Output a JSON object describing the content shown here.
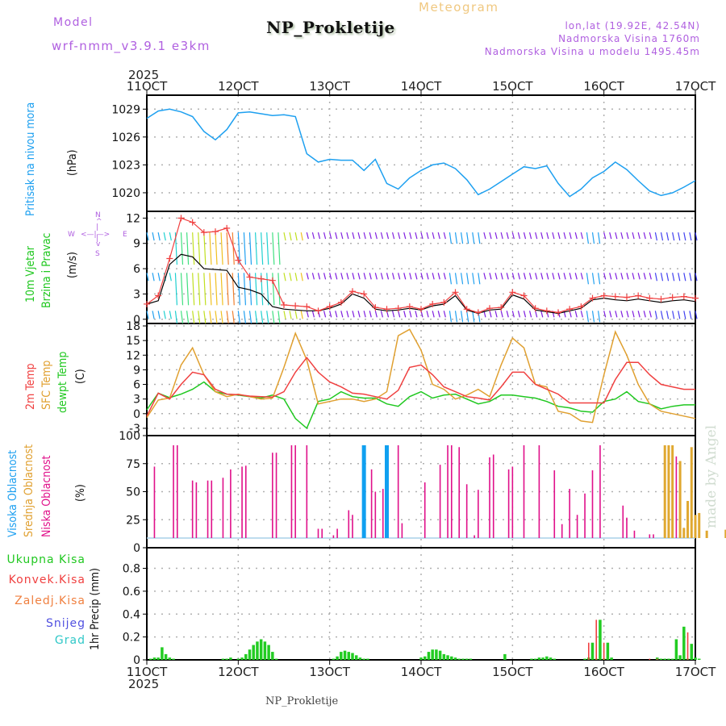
{
  "header": {
    "model_label": "Model",
    "model_name": "wrf-nmm_v3.9.1 e3km",
    "station_title": "NP_Prokletije",
    "product": "Meteogram",
    "coords": "lon,lat (19.92E, 42.54N)",
    "elevation": "Nadmorska Visina 1760m",
    "model_elevation": "Nadmorska Visina u modelu 1495.45m",
    "year_top": "2025",
    "year_bottom": "2025",
    "footer_station": "NP_Prokletije",
    "watermark": "made by Angel"
  },
  "colors": {
    "pressure": "#1ea0f0",
    "temp2m": "#f04040",
    "sfc_temp": "#e0a030",
    "dewpt": "#20c820",
    "cloud_high": "#10a0f0",
    "cloud_mid": "#e0a830",
    "cloud_low": "#e0108a",
    "precip_total": "#22cc22",
    "precip_conv": "#f04040",
    "wind_gust": "#f04040",
    "wind_speed": "#000000",
    "label_purple": "#b060e0"
  },
  "panel_labels": {
    "pressure": {
      "name": "Pritisak na nivou mora",
      "unit": "(hPa)"
    },
    "wind": {
      "name1": "10m Vjetar",
      "name2": "Brzina i Pravac",
      "unit": "(m/s)",
      "compass": {
        "n": "N",
        "s": "S",
        "w": "W",
        "e": "E"
      }
    },
    "temp": {
      "t2m": "2m Temp",
      "sfc": "SFC Temp",
      "dew": "dewpt Temp",
      "unit": "(C)"
    },
    "cloud": {
      "high": "Visoka Oblacnost",
      "mid": "Srednja Oblacnost",
      "low": "Niska Oblacnost",
      "unit": "(%)"
    },
    "precip": {
      "total": "Ukupna Kisa",
      "conv": "Konvek.Kisa",
      "frz": "Zaledj.Kisa",
      "snow": "Snijeg",
      "hail": "Grad",
      "unit": "1hr Precip (mm)"
    }
  },
  "chart_data": [
    {
      "type": "line",
      "title": "Pritisak na nivou mora",
      "ylabel": "(hPa)",
      "x_ticks": [
        "11OCT",
        "12OCT",
        "13OCT",
        "14OCT",
        "15OCT",
        "16OCT",
        "17OCT"
      ],
      "x_range_days": [
        0,
        6
      ],
      "ylim": [
        1018,
        1030.5
      ],
      "y_ticks": [
        1020,
        1023,
        1026,
        1029
      ],
      "grid": true,
      "series": [
        {
          "name": "MSLP",
          "x_hours": [
            0,
            3,
            6,
            9,
            12,
            15,
            18,
            21,
            24,
            27,
            30,
            33,
            36,
            39,
            42,
            45,
            48,
            51,
            54,
            57,
            60,
            63,
            66,
            69,
            72,
            75,
            78,
            81,
            84,
            87,
            90,
            93,
            96,
            99,
            102,
            105,
            108,
            111,
            114,
            117,
            120,
            123,
            126,
            129,
            132,
            135,
            138,
            141,
            144
          ],
          "values": [
            1028,
            1028.8,
            1029,
            1028.7,
            1028.2,
            1026.6,
            1025.7,
            1026.8,
            1028.6,
            1028.7,
            1028.5,
            1028.3,
            1028.4,
            1028.2,
            1024.2,
            1023.3,
            1023.6,
            1023.5,
            1023.5,
            1022.4,
            1023.6,
            1021.0,
            1020.4,
            1021.6,
            1022.4,
            1023.0,
            1023.2,
            1022.6,
            1021.4,
            1019.8,
            1020.4,
            1021.2,
            1022.0,
            1022.8,
            1022.6,
            1022.9,
            1021.0,
            1019.6,
            1020.4,
            1021.6,
            1022.3,
            1023.3,
            1022.5,
            1021.3,
            1020.2,
            1019.7,
            1020.0,
            1020.6,
            1021.3
          ]
        }
      ]
    },
    {
      "type": "line",
      "title": "10m Vjetar Brzina i Pravac",
      "ylabel": "(m/s)",
      "ylim": [
        -0.5,
        12.8
      ],
      "y_ticks": [
        0,
        3,
        6,
        9,
        12
      ],
      "grid": true,
      "series": [
        {
          "name": "gust",
          "x_hours": [
            0,
            3,
            6,
            9,
            12,
            15,
            18,
            21,
            24,
            27,
            30,
            33,
            36,
            39,
            42,
            45,
            48,
            51,
            54,
            57,
            60,
            63,
            66,
            69,
            72,
            75,
            78,
            81,
            84,
            87,
            90,
            93,
            96,
            99,
            102,
            105,
            108,
            111,
            114,
            117,
            120,
            123,
            126,
            129,
            132,
            135,
            138,
            141,
            144
          ],
          "values": [
            1.8,
            2.8,
            7.2,
            12.0,
            11.5,
            10.3,
            10.4,
            10.8,
            7.0,
            5.0,
            4.8,
            4.6,
            1.7,
            1.6,
            1.5,
            1.0,
            1.5,
            2.0,
            3.3,
            3.0,
            1.4,
            1.2,
            1.3,
            1.5,
            1.2,
            1.8,
            2.0,
            3.2,
            1.2,
            0.8,
            1.3,
            1.4,
            3.2,
            2.8,
            1.3,
            1.0,
            0.8,
            1.2,
            1.5,
            2.5,
            2.8,
            2.7,
            2.6,
            2.8,
            2.5,
            2.4,
            2.6,
            2.7,
            2.5
          ]
        },
        {
          "name": "speed",
          "x_hours": [
            0,
            3,
            6,
            9,
            12,
            15,
            18,
            21,
            24,
            27,
            30,
            33,
            36,
            39,
            42,
            45,
            48,
            51,
            54,
            57,
            60,
            63,
            66,
            69,
            72,
            75,
            78,
            81,
            84,
            87,
            90,
            93,
            96,
            99,
            102,
            105,
            108,
            111,
            114,
            117,
            120,
            123,
            126,
            129,
            132,
            135,
            138,
            141,
            144
          ],
          "values": [
            1.8,
            2.2,
            6.5,
            7.7,
            7.4,
            6.0,
            5.9,
            5.8,
            3.8,
            3.5,
            3.0,
            1.5,
            1.2,
            1.1,
            1.0,
            1.0,
            1.3,
            1.8,
            3.0,
            2.5,
            1.2,
            1.0,
            1.1,
            1.3,
            1.1,
            1.6,
            1.8,
            2.8,
            1.1,
            0.7,
            1.1,
            1.2,
            2.9,
            2.4,
            1.1,
            0.9,
            0.7,
            1.0,
            1.3,
            2.3,
            2.5,
            2.3,
            2.2,
            2.4,
            2.2,
            2.0,
            2.2,
            2.3,
            2.1
          ]
        }
      ],
      "wind_barb_rows_ms": [
        1,
        5.5,
        10.3
      ]
    },
    {
      "type": "line",
      "title": "Temperature",
      "ylabel": "(C)",
      "ylim": [
        -4.5,
        18.5
      ],
      "y_ticks": [
        -3,
        0,
        3,
        6,
        9,
        12,
        15,
        18
      ],
      "grid": true,
      "series": [
        {
          "name": "2m Temp",
          "x_hours": [
            0,
            3,
            6,
            9,
            12,
            15,
            18,
            21,
            24,
            27,
            30,
            33,
            36,
            39,
            42,
            45,
            48,
            51,
            54,
            57,
            60,
            63,
            66,
            69,
            72,
            75,
            78,
            81,
            84,
            87,
            90,
            93,
            96,
            99,
            102,
            105,
            108,
            111,
            114,
            117,
            120,
            123,
            126,
            129,
            132,
            135,
            138,
            141,
            144
          ],
          "values": [
            -0.5,
            4.2,
            3.0,
            6.0,
            8.5,
            8.0,
            5.0,
            4.0,
            3.9,
            3.6,
            3.5,
            3.4,
            4.5,
            8.5,
            11.5,
            8.5,
            6.5,
            5.5,
            4.2,
            4.0,
            3.5,
            3.0,
            4.8,
            9.5,
            10.0,
            8.0,
            5.5,
            4.5,
            3.5,
            3.2,
            2.8,
            5.5,
            8.5,
            8.5,
            6.0,
            5.0,
            4.0,
            2.2,
            2.2,
            2.2,
            2.2,
            7.0,
            10.5,
            10.5,
            8.0,
            6.0,
            5.5,
            5.0,
            5.0
          ]
        },
        {
          "name": "SFC Temp",
          "x_hours": [
            0,
            3,
            6,
            9,
            12,
            15,
            18,
            21,
            24,
            27,
            30,
            33,
            36,
            39,
            42,
            45,
            48,
            51,
            54,
            57,
            60,
            63,
            66,
            69,
            72,
            75,
            78,
            81,
            84,
            87,
            90,
            93,
            96,
            99,
            102,
            105,
            108,
            111,
            114,
            117,
            120,
            123,
            126,
            129,
            132,
            135,
            138,
            141,
            144
          ],
          "values": [
            -0.8,
            2.8,
            3.2,
            10.0,
            13.5,
            8.0,
            4.5,
            3.5,
            4.0,
            3.5,
            3.0,
            3.2,
            9.5,
            16.5,
            11.0,
            2.0,
            2.5,
            3.0,
            3.0,
            2.5,
            3.0,
            4.5,
            16.0,
            17.3,
            13.0,
            6.0,
            5.0,
            3.0,
            3.8,
            5.0,
            3.5,
            10.0,
            15.5,
            13.5,
            6.0,
            5.5,
            0.5,
            0.0,
            -1.5,
            -1.8,
            8.0,
            16.8,
            12.0,
            6.0,
            2.0,
            0.5,
            0.0,
            -0.5,
            -1.0
          ]
        },
        {
          "name": "dewpt Temp",
          "x_hours": [
            0,
            3,
            6,
            9,
            12,
            15,
            18,
            21,
            24,
            27,
            30,
            33,
            36,
            39,
            42,
            45,
            48,
            51,
            54,
            57,
            60,
            63,
            66,
            69,
            72,
            75,
            78,
            81,
            84,
            87,
            90,
            93,
            96,
            99,
            102,
            105,
            108,
            111,
            114,
            117,
            120,
            123,
            126,
            129,
            132,
            135,
            138,
            141,
            144
          ],
          "values": [
            0.8,
            4.2,
            3.3,
            4.0,
            5.0,
            6.5,
            4.5,
            4.0,
            3.8,
            3.5,
            3.2,
            3.8,
            3.0,
            -1.0,
            -3.0,
            2.5,
            3.0,
            4.5,
            3.5,
            3.2,
            3.2,
            2.0,
            1.5,
            3.5,
            4.5,
            3.2,
            3.8,
            4.0,
            3.0,
            2.0,
            2.5,
            3.8,
            3.8,
            3.5,
            3.2,
            2.5,
            1.5,
            1.2,
            0.5,
            0.3,
            2.5,
            3.0,
            4.5,
            2.5,
            2.0,
            1.0,
            1.5,
            1.8,
            1.8
          ]
        }
      ]
    },
    {
      "type": "bar",
      "title": "Oblacnost",
      "ylabel": "(%)",
      "ylim": [
        0,
        100
      ],
      "y_ticks": [
        0,
        25,
        50,
        75,
        100
      ],
      "grid": true,
      "series": [
        {
          "name": "Niska Oblacnost",
          "x_hours": [
            2,
            7,
            8,
            12,
            13,
            16,
            17,
            20,
            22,
            25,
            26,
            33,
            34,
            38,
            39,
            42,
            45,
            46,
            49,
            50,
            53,
            54,
            59,
            60,
            62,
            63,
            66,
            67,
            73,
            77,
            79,
            80,
            82,
            84,
            86,
            87,
            90,
            91,
            95,
            96,
            99,
            103,
            107,
            109,
            111,
            113,
            115,
            117,
            119,
            125,
            126,
            128,
            132,
            133,
            136,
            137,
            139,
            141,
            147,
            152,
            153,
            157,
            159,
            164,
            167
          ],
          "values": [
            77,
            100,
            100,
            62,
            60,
            62,
            62,
            65,
            74,
            77,
            78,
            92,
            92,
            100,
            100,
            100,
            10,
            10,
            3,
            10,
            30,
            25,
            74,
            50,
            53,
            53,
            100,
            16,
            60,
            79,
            100,
            100,
            98,
            58,
            3,
            52,
            87,
            90,
            74,
            77,
            100,
            100,
            73,
            15,
            53,
            25,
            48,
            73,
            100,
            35,
            22,
            8,
            4,
            4,
            4,
            46,
            88,
            5,
            4,
            4,
            4,
            4,
            4,
            4,
            4
          ]
        },
        {
          "name": "Srednja Oblacnost",
          "x_hours": [
            136,
            137,
            138,
            140,
            141,
            142,
            143,
            144,
            145,
            147,
            152,
            153,
            154,
            162
          ],
          "values": [
            100,
            100,
            100,
            83,
            11,
            40,
            98,
            25,
            27,
            8,
            9,
            16,
            22,
            3
          ]
        },
        {
          "name": "Visoka Oblacnost",
          "x_hours": [
            57,
            63
          ],
          "values": [
            100,
            100
          ]
        }
      ]
    },
    {
      "type": "bar",
      "title": "1hr Precip",
      "ylabel": "1hr Precip (mm)",
      "ylim": [
        0,
        0.98
      ],
      "y_ticks": [
        0,
        0.2,
        0.4,
        0.6,
        0.8
      ],
      "grid": true,
      "series": [
        {
          "name": "Ukupna Kisa",
          "x_hours": [
            1,
            2,
            3,
            4,
            5,
            6,
            7,
            20,
            21,
            22,
            24,
            25,
            26,
            27,
            28,
            29,
            30,
            31,
            32,
            33,
            34,
            49,
            50,
            51,
            52,
            53,
            54,
            55,
            56,
            57,
            58,
            72,
            73,
            74,
            75,
            76,
            77,
            78,
            79,
            80,
            81,
            82,
            83,
            84,
            85,
            94,
            101,
            102,
            103,
            104,
            105,
            106,
            107,
            115,
            116,
            117,
            118,
            119,
            120,
            121,
            122,
            134,
            135,
            136,
            137,
            138,
            139,
            140,
            141,
            142,
            143,
            144,
            145
          ],
          "values": [
            0.01,
            0.02,
            0.02,
            0.11,
            0.05,
            0.02,
            0.01,
            0.01,
            0.01,
            0.02,
            0.01,
            0.02,
            0.05,
            0.09,
            0.13,
            0.16,
            0.18,
            0.16,
            0.13,
            0.07,
            0.01,
            0.01,
            0.03,
            0.07,
            0.08,
            0.07,
            0.06,
            0.04,
            0.02,
            0.01,
            0.01,
            0.02,
            0.03,
            0.07,
            0.09,
            0.09,
            0.08,
            0.05,
            0.04,
            0.03,
            0.02,
            0.01,
            0.01,
            0.01,
            0.01,
            0.05,
            0.01,
            0.01,
            0.02,
            0.02,
            0.03,
            0.02,
            0.01,
            0.01,
            0.02,
            0.15,
            0.01,
            0.35,
            0.01,
            0.15,
            0.02,
            0.02,
            0.01,
            0.01,
            0.01,
            0.01,
            0.18,
            0.04,
            0.29,
            0.01,
            0.14,
            0.02,
            0.01
          ]
        },
        {
          "name": "Konvek.Kisa",
          "x_hours": [
            116,
            118,
            120,
            132,
            134,
            142
          ],
          "values": [
            0.15,
            0.35,
            0.15,
            0.01,
            0.01,
            0.24
          ]
        }
      ]
    }
  ]
}
